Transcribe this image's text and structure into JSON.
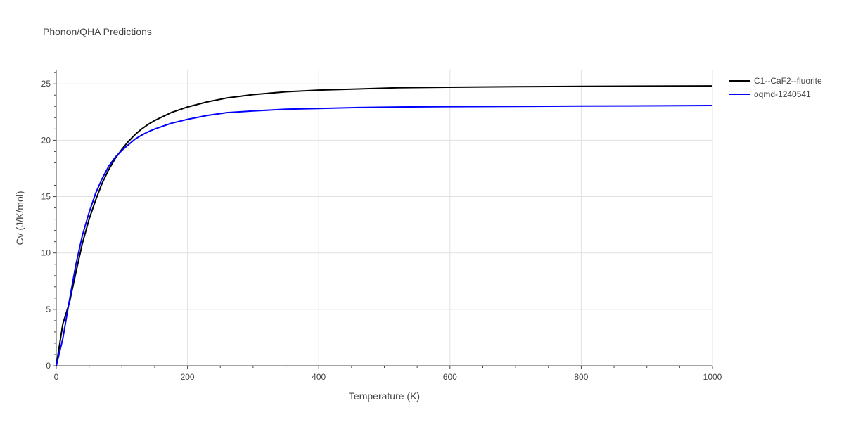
{
  "chart_data": {
    "type": "line",
    "title": "Phonon/QHA Predictions",
    "xlabel": "Temperature (K)",
    "ylabel": "Cv (J/K/mol)",
    "xlim": [
      0,
      1000
    ],
    "ylim": [
      0,
      26.2
    ],
    "xticks": [
      0,
      200,
      400,
      600,
      800,
      1000
    ],
    "yticks": [
      0,
      5,
      10,
      15,
      20,
      25
    ],
    "grid": true,
    "legend_position": "top-right",
    "series": [
      {
        "name": "C1--CaF2--fluorite",
        "color": "#000000",
        "x": [
          0,
          10,
          20,
          30,
          40,
          50,
          60,
          70,
          80,
          90,
          100,
          110,
          120,
          130,
          140,
          150,
          175,
          200,
          230,
          260,
          300,
          350,
          400,
          460,
          520,
          600,
          700,
          800,
          900,
          1000
        ],
        "y": [
          0,
          3.7,
          5.6,
          8.3,
          10.9,
          13.0,
          14.7,
          16.2,
          17.4,
          18.4,
          19.2,
          19.9,
          20.5,
          21.0,
          21.4,
          21.75,
          22.45,
          22.95,
          23.4,
          23.75,
          24.05,
          24.3,
          24.45,
          24.55,
          24.65,
          24.7,
          24.75,
          24.78,
          24.8,
          24.82
        ]
      },
      {
        "name": "oqmd-1240541",
        "color": "#0000ff",
        "x": [
          0,
          10,
          20,
          30,
          40,
          50,
          60,
          70,
          80,
          90,
          100,
          110,
          120,
          130,
          140,
          150,
          175,
          200,
          230,
          260,
          300,
          350,
          400,
          460,
          520,
          600,
          700,
          800,
          900,
          1000
        ],
        "y": [
          0,
          2.4,
          5.8,
          9.0,
          11.6,
          13.6,
          15.3,
          16.6,
          17.7,
          18.5,
          19.1,
          19.6,
          20.1,
          20.45,
          20.75,
          21.0,
          21.5,
          21.85,
          22.2,
          22.45,
          22.6,
          22.75,
          22.82,
          22.9,
          22.95,
          22.98,
          23.0,
          23.03,
          23.05,
          23.08
        ]
      }
    ]
  }
}
